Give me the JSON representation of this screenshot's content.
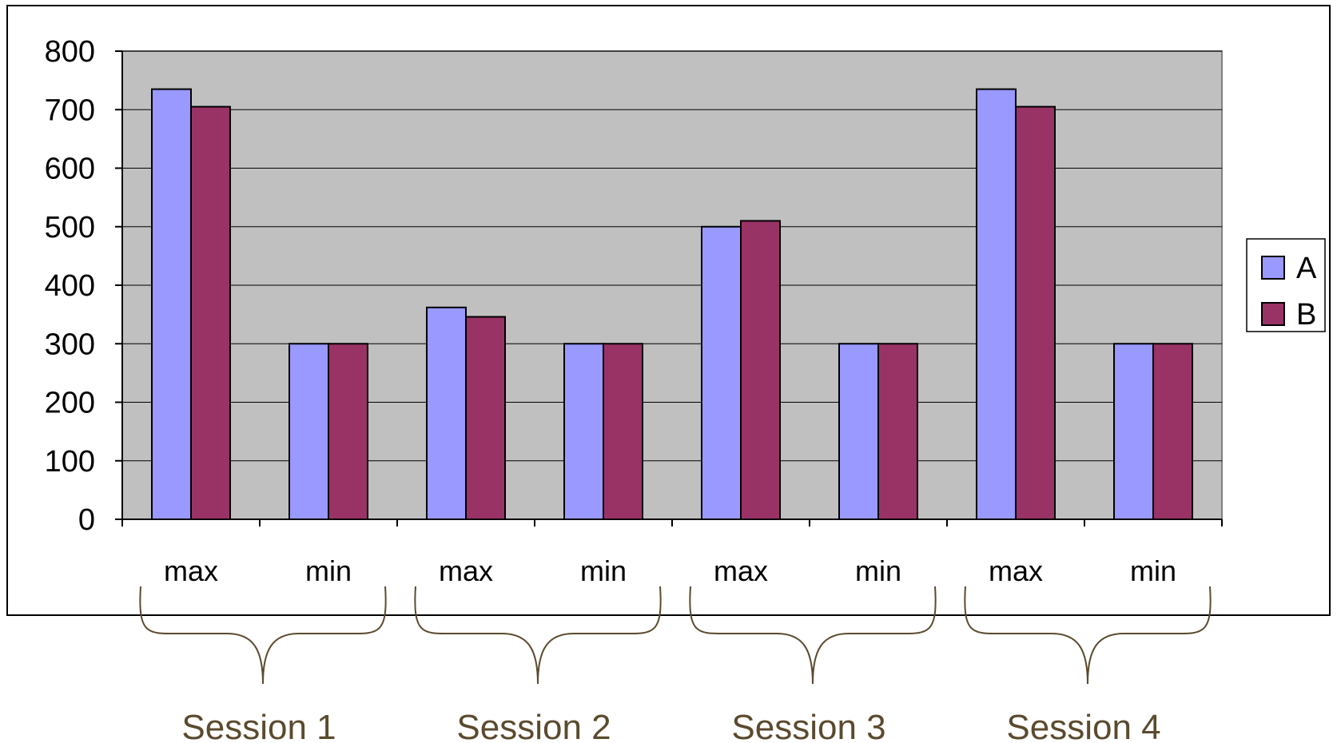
{
  "chart_data": {
    "type": "bar",
    "categories": [
      "max",
      "min",
      "max",
      "min",
      "max",
      "min",
      "max",
      "min"
    ],
    "groups": [
      "Session 1",
      "Session 2",
      "Session 3",
      "Session 4"
    ],
    "series": [
      {
        "name": "A",
        "color": "#9999ff",
        "values": [
          735,
          300,
          362,
          300,
          500,
          300,
          735,
          300
        ]
      },
      {
        "name": "B",
        "color": "#993366",
        "values": [
          705,
          300,
          346,
          300,
          510,
          300,
          705,
          300
        ]
      }
    ],
    "ylim": [
      0,
      800
    ],
    "yticks": [
      0,
      100,
      200,
      300,
      400,
      500,
      600,
      700,
      800
    ],
    "grid": true,
    "legend": "right",
    "plot_background": "#c0c0c0",
    "bracket_color": "#5b4a2e"
  }
}
